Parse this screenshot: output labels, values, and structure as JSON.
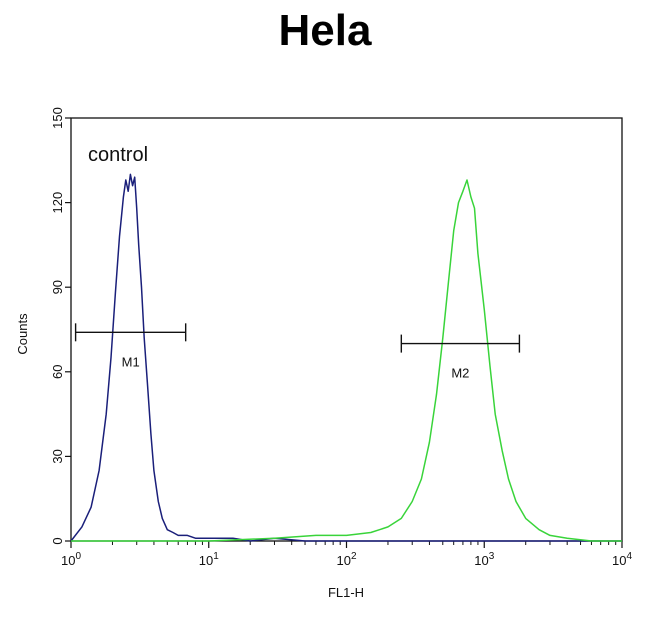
{
  "title": "Hela",
  "chart_data": {
    "type": "line",
    "title": "Hela",
    "xlabel": "FL1-H",
    "ylabel": "Counts",
    "x_scale": "log",
    "xlim": [
      1,
      10000
    ],
    "ylim": [
      0,
      150
    ],
    "x_ticks": [
      {
        "value": 1,
        "base": "10",
        "exp": "0"
      },
      {
        "value": 10,
        "base": "10",
        "exp": "1"
      },
      {
        "value": 100,
        "base": "10",
        "exp": "2"
      },
      {
        "value": 1000,
        "base": "10",
        "exp": "3"
      },
      {
        "value": 10000,
        "base": "10",
        "exp": "4"
      }
    ],
    "y_ticks": [
      0,
      30,
      60,
      90,
      120,
      150
    ],
    "grid": false,
    "annotations": [
      {
        "text": "control",
        "x": 2.8,
        "y": 135
      }
    ],
    "gates": [
      {
        "label": "M1",
        "x_start": 1.08,
        "x_end": 6.8,
        "y": 74
      },
      {
        "label": "M2",
        "x_start": 250,
        "x_end": 1800,
        "y": 70
      }
    ],
    "series": [
      {
        "color": "#1a1f7a",
        "x": [
          1.0,
          1.2,
          1.4,
          1.6,
          1.8,
          1.95,
          2.1,
          2.25,
          2.4,
          2.5,
          2.6,
          2.7,
          2.8,
          2.9,
          3.0,
          3.1,
          3.25,
          3.4,
          3.6,
          3.8,
          4.0,
          4.3,
          4.6,
          5.0,
          5.5,
          6.0,
          7.0,
          8.0,
          10,
          15,
          20,
          30,
          50,
          100,
          300,
          1000,
          10000
        ],
        "y": [
          0,
          5,
          12,
          25,
          45,
          65,
          88,
          108,
          122,
          128,
          124,
          130,
          126,
          129,
          118,
          105,
          90,
          72,
          55,
          38,
          25,
          14,
          8,
          4,
          3,
          2,
          2,
          1,
          1,
          1,
          0,
          1,
          0,
          0,
          0,
          0,
          0
        ]
      },
      {
        "color": "#39d43a",
        "x": [
          1.0,
          10,
          30,
          60,
          100,
          150,
          200,
          250,
          300,
          350,
          400,
          450,
          500,
          550,
          600,
          650,
          700,
          750,
          800,
          850,
          900,
          1000,
          1100,
          1200,
          1350,
          1500,
          1700,
          2000,
          2500,
          3000,
          4000,
          6000,
          10000
        ],
        "y": [
          0,
          0,
          1,
          2,
          2,
          3,
          5,
          8,
          14,
          22,
          35,
          52,
          72,
          92,
          110,
          120,
          124,
          128,
          122,
          118,
          102,
          82,
          62,
          45,
          32,
          22,
          14,
          8,
          4,
          2,
          1,
          0,
          0
        ]
      }
    ]
  }
}
